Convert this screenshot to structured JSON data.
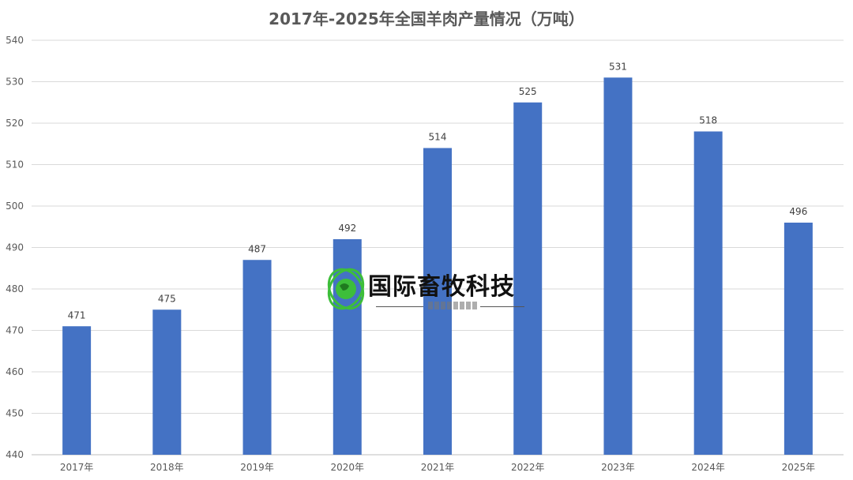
{
  "chart_data": {
    "type": "bar",
    "title": "2017年-2025年全国羊肉产量情况（万吨）",
    "categories": [
      "2017年",
      "2018年",
      "2019年",
      "2020年",
      "2021年",
      "2022年",
      "2023年",
      "2024年",
      "2025年"
    ],
    "values": [
      471,
      475,
      487,
      492,
      514,
      525,
      531,
      518,
      496
    ],
    "ylim": [
      440,
      540
    ],
    "yticks": [
      440,
      450,
      460,
      470,
      480,
      490,
      500,
      510,
      520,
      530,
      540
    ],
    "xlabel": "",
    "ylabel": "",
    "grid": true,
    "bar_color": "#4472C4",
    "grid_color": "#D9D9D9"
  },
  "watermark": {
    "text": "国际畜牧科技",
    "logo_icon": "globe-icon",
    "logo_color": "#3DBE3A"
  }
}
